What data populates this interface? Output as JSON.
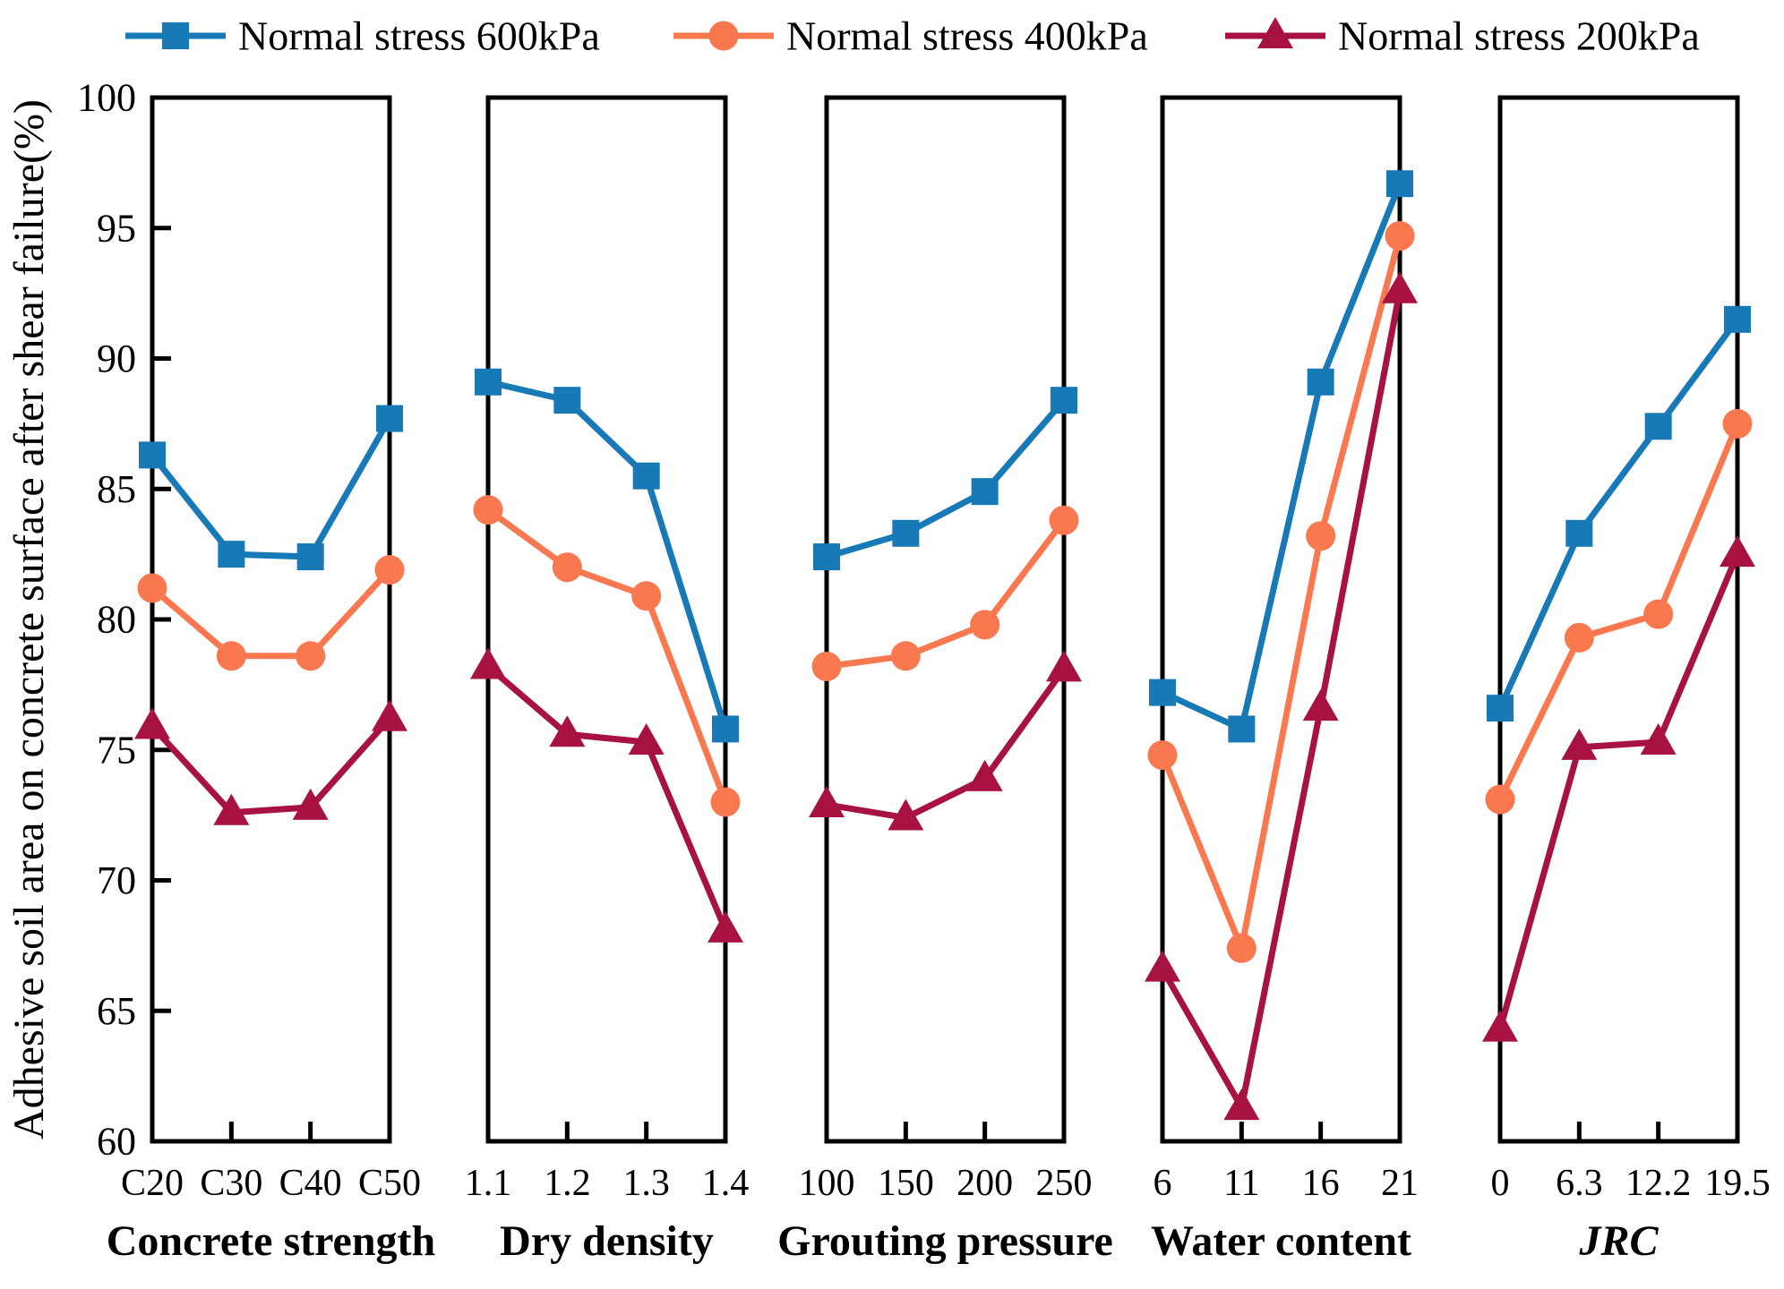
{
  "figure": {
    "background": "#ffffff",
    "frame_color": "#000000"
  },
  "legend": {
    "items": [
      {
        "label": "Normal stress 600kPa",
        "color": "#1779b6",
        "marker": "square"
      },
      {
        "label": "Normal stress 400kPa",
        "color": "#fa7850",
        "marker": "circle"
      },
      {
        "label": "Normal stress 200kPa",
        "color": "#a81240",
        "marker": "triangle"
      }
    ]
  },
  "y_axis": {
    "title": "Adhesive soil area on concrete surface after shear failure(%)",
    "min": 60,
    "max": 100,
    "tick_step": 5,
    "tick_labels": [
      "60",
      "65",
      "70",
      "75",
      "80",
      "85",
      "90",
      "95",
      "100"
    ]
  },
  "chart_data": [
    {
      "type": "line",
      "panel_title": "Concrete strength",
      "title_italic": false,
      "categories": [
        "C20",
        "C30",
        "C40",
        "C50"
      ],
      "ylim": [
        60,
        100
      ],
      "series": [
        {
          "name": "Normal stress 600kPa",
          "marker": "square",
          "color": "#1779b6",
          "values": [
            86.3,
            82.5,
            82.4,
            87.7
          ]
        },
        {
          "name": "Normal stress 400kPa",
          "marker": "circle",
          "color": "#fa7850",
          "values": [
            81.2,
            78.6,
            78.6,
            81.9
          ]
        },
        {
          "name": "Normal stress 200kPa",
          "marker": "triangle",
          "color": "#a81240",
          "values": [
            75.9,
            72.6,
            72.8,
            76.2
          ]
        }
      ]
    },
    {
      "type": "line",
      "panel_title": "Dry density",
      "title_italic": false,
      "categories": [
        "1.1",
        "1.2",
        "1.3",
        "1.4"
      ],
      "ylim": [
        60,
        100
      ],
      "series": [
        {
          "name": "Normal stress 600kPa",
          "marker": "square",
          "color": "#1779b6",
          "values": [
            89.1,
            88.4,
            85.5,
            75.8
          ]
        },
        {
          "name": "Normal stress 400kPa",
          "marker": "circle",
          "color": "#fa7850",
          "values": [
            84.2,
            82.0,
            80.9,
            73.0
          ]
        },
        {
          "name": "Normal stress 200kPa",
          "marker": "triangle",
          "color": "#a81240",
          "values": [
            78.2,
            75.6,
            75.3,
            68.1
          ]
        }
      ]
    },
    {
      "type": "line",
      "panel_title": "Grouting pressure",
      "title_italic": false,
      "categories": [
        "100",
        "150",
        "200",
        "250"
      ],
      "ylim": [
        60,
        100
      ],
      "series": [
        {
          "name": "Normal stress 600kPa",
          "marker": "square",
          "color": "#1779b6",
          "values": [
            82.4,
            83.3,
            84.9,
            88.4
          ]
        },
        {
          "name": "Normal stress 400kPa",
          "marker": "circle",
          "color": "#fa7850",
          "values": [
            78.2,
            78.6,
            79.8,
            83.8
          ]
        },
        {
          "name": "Normal stress 200kPa",
          "marker": "triangle",
          "color": "#a81240",
          "values": [
            72.9,
            72.4,
            73.9,
            78.1
          ]
        }
      ]
    },
    {
      "type": "line",
      "panel_title": "Water content",
      "title_italic": false,
      "categories": [
        "6",
        "11",
        "16",
        "21"
      ],
      "ylim": [
        60,
        100
      ],
      "series": [
        {
          "name": "Normal stress 600kPa",
          "marker": "square",
          "color": "#1779b6",
          "values": [
            77.2,
            75.8,
            89.1,
            96.7
          ]
        },
        {
          "name": "Normal stress 400kPa",
          "marker": "circle",
          "color": "#fa7850",
          "values": [
            74.8,
            67.4,
            83.2,
            94.7
          ]
        },
        {
          "name": "Normal stress 200kPa",
          "marker": "triangle",
          "color": "#a81240",
          "values": [
            66.6,
            61.3,
            76.6,
            92.6
          ]
        }
      ]
    },
    {
      "type": "line",
      "panel_title": "JRC",
      "title_italic": true,
      "categories": [
        "0",
        "6.3",
        "12.2",
        "19.5"
      ],
      "ylim": [
        60,
        100
      ],
      "series": [
        {
          "name": "Normal stress 600kPa",
          "marker": "square",
          "color": "#1779b6",
          "values": [
            76.6,
            83.3,
            87.4,
            91.5
          ]
        },
        {
          "name": "Normal stress 400kPa",
          "marker": "circle",
          "color": "#fa7850",
          "values": [
            73.1,
            79.3,
            80.2,
            87.5
          ]
        },
        {
          "name": "Normal stress 200kPa",
          "marker": "triangle",
          "color": "#a81240",
          "values": [
            64.3,
            75.1,
            75.3,
            82.5
          ]
        }
      ]
    }
  ]
}
